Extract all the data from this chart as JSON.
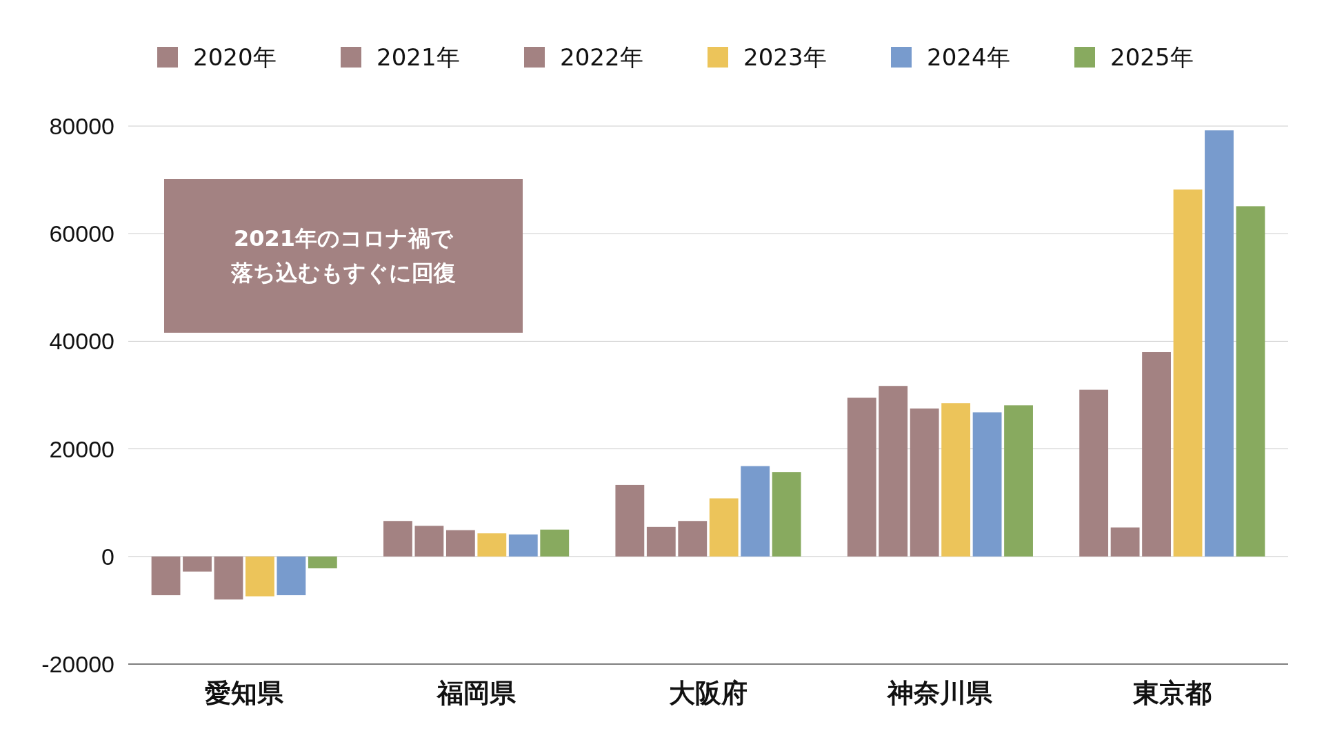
{
  "chart_data": {
    "type": "bar",
    "categories": [
      "愛知県",
      "福岡県",
      "大阪府",
      "神奈川県",
      "東京都"
    ],
    "series": [
      {
        "name": "2020年",
        "color": "#a38282",
        "values": [
          -7200,
          6600,
          13300,
          29500,
          31000
        ]
      },
      {
        "name": "2021年",
        "color": "#a38282",
        "values": [
          -2800,
          5700,
          5500,
          31700,
          5400
        ]
      },
      {
        "name": "2022年",
        "color": "#a38282",
        "values": [
          -8000,
          4900,
          6600,
          27500,
          38000
        ]
      },
      {
        "name": "2023年",
        "color": "#ecc45a",
        "values": [
          -7400,
          4300,
          10800,
          28500,
          68200
        ]
      },
      {
        "name": "2024年",
        "color": "#789bcd",
        "values": [
          -7200,
          4100,
          16800,
          26800,
          79200
        ]
      },
      {
        "name": "2025年",
        "color": "#88aa5f",
        "values": [
          -2200,
          5000,
          15700,
          28100,
          65100
        ]
      }
    ],
    "ylim": [
      -20000,
      80000
    ],
    "yticks": [
      -20000,
      0,
      20000,
      40000,
      60000,
      80000
    ],
    "grid": "y",
    "legend": "top",
    "annotations": [
      "2021年のコロナ禍で",
      "落ち込むもすぐに回復"
    ]
  }
}
